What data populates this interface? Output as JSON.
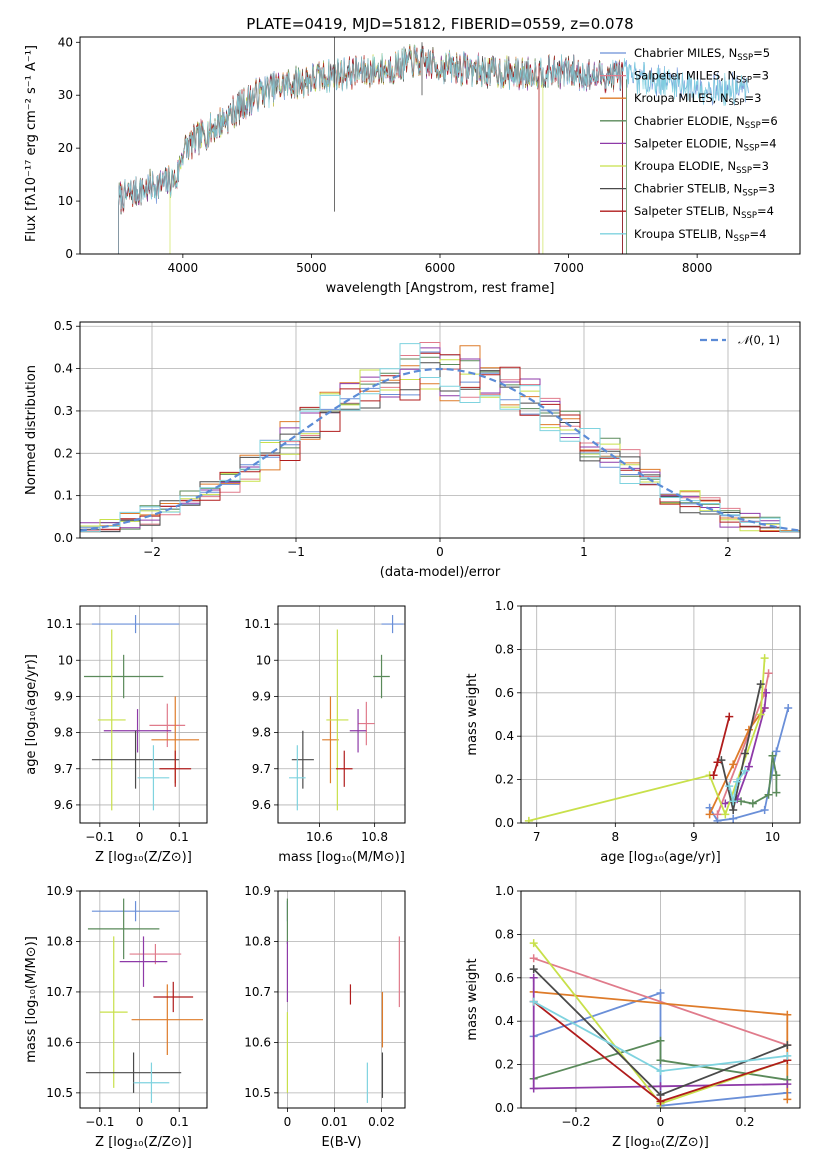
{
  "chart_data": [
    {
      "id": "spectrum",
      "type": "line",
      "title": "PLATE=0419, MJD=51812, FIBERID=0559, z=0.078",
      "xlabel": "wavelength [Angstrom, rest frame]",
      "ylabel": "Flux [fλ10⁻¹⁷ erg cm⁻² s⁻¹ A⁻¹]",
      "xlim": [
        3200,
        8800
      ],
      "ylim": [
        0,
        41
      ],
      "xticks": [
        4000,
        5000,
        6000,
        7000,
        8000
      ],
      "yticks": [
        0,
        10,
        20,
        30,
        40
      ],
      "grid": false,
      "legend_position": "top-right",
      "continuum_points": [
        [
          3500,
          10.5
        ],
        [
          3650,
          12
        ],
        [
          3800,
          13
        ],
        [
          3950,
          14
        ],
        [
          4000,
          19.5
        ],
        [
          4100,
          21.5
        ],
        [
          4250,
          24
        ],
        [
          4400,
          27
        ],
        [
          4600,
          30.5
        ],
        [
          4800,
          32
        ],
        [
          5000,
          33
        ],
        [
          5200,
          34
        ],
        [
          5400,
          34.5
        ],
        [
          5600,
          35
        ],
        [
          5800,
          36.5
        ],
        [
          6000,
          35.5
        ],
        [
          6200,
          35
        ],
        [
          6400,
          34.5
        ],
        [
          6600,
          34
        ],
        [
          6800,
          34.5
        ],
        [
          7000,
          34.5
        ],
        [
          7200,
          33.5
        ],
        [
          7400,
          34
        ],
        [
          7600,
          33
        ],
        [
          7800,
          32.5
        ],
        [
          8000,
          31.5
        ],
        [
          8200,
          31
        ],
        [
          8400,
          31
        ]
      ],
      "series": [
        {
          "name": "Chabrier MILES, N_SSP=5",
          "legend_main": "Chabrier MILES, N",
          "legend_sub": "SSP",
          "legend_tail": "=5",
          "color": "#6a8fd8",
          "span": [
            3500,
            8400
          ]
        },
        {
          "name": "Salpeter MILES, N_SSP=3",
          "legend_main": "Salpeter MILES, N",
          "legend_sub": "SSP",
          "legend_tail": "=3",
          "color": "#e07b8b",
          "span": [
            3500,
            7420
          ]
        },
        {
          "name": "Kroupa MILES, N_SSP=3",
          "legend_main": "Kroupa MILES, N",
          "legend_sub": "SSP",
          "legend_tail": "=3",
          "color": "#de7b2a",
          "span": [
            3500,
            7420
          ]
        },
        {
          "name": "Chabrier ELODIE, N_SSP=6",
          "legend_main": "Chabrier ELODIE, N",
          "legend_sub": "SSP",
          "legend_tail": "=6",
          "color": "#5a8a5a",
          "span": [
            3500,
            7420
          ]
        },
        {
          "name": "Salpeter ELODIE, N_SSP=4",
          "legend_main": "Salpeter ELODIE, N",
          "legend_sub": "SSP",
          "legend_tail": "=4",
          "color": "#8e3aa8",
          "span": [
            3500,
            7420
          ]
        },
        {
          "name": "Kroupa ELODIE, N_SSP=3",
          "legend_main": "Kroupa ELODIE, N",
          "legend_sub": "SSP",
          "legend_tail": "=3",
          "color": "#c8e04a",
          "span": [
            3900,
            6800
          ]
        },
        {
          "name": "Chabrier STELIB, N_SSP=3",
          "legend_main": "Chabrier STELIB, N",
          "legend_sub": "SSP",
          "legend_tail": "=3",
          "color": "#4a4a4a",
          "span": [
            3500,
            7420
          ]
        },
        {
          "name": "Salpeter STELIB, N_SSP=4",
          "legend_main": "Salpeter STELIB, N",
          "legend_sub": "SSP",
          "legend_tail": "=4",
          "color": "#b01c1c",
          "span": [
            3500,
            7420
          ]
        },
        {
          "name": "Kroupa STELIB, N_SSP=4",
          "legend_main": "Kroupa STELIB, N",
          "legend_sub": "SSP",
          "legend_tail": "=4",
          "color": "#7fd3df",
          "span": [
            3500,
            8400
          ]
        }
      ]
    },
    {
      "id": "residuals",
      "type": "line",
      "xlabel": "(data-model)/error",
      "ylabel": "Normed distribution",
      "xlim": [
        -2.5,
        2.5
      ],
      "ylim": [
        0,
        0.51
      ],
      "xticks": [
        -2,
        -1,
        0,
        1,
        2
      ],
      "yticks": [
        0.0,
        0.1,
        0.2,
        0.3,
        0.4,
        0.5
      ],
      "grid": true,
      "legend_position": "top-right",
      "reference_curve": {
        "name": "N(0,1)",
        "label_script": "𝒩",
        "label_tail": "(0, 1)",
        "color": "#5b8bd6",
        "style": "dashed"
      },
      "histogram_bins": 36,
      "note": "nine step histograms, one per fit, colours as in the spectrum panel"
    },
    {
      "id": "age-vs-Z",
      "type": "scatter",
      "xlabel": "Z [log₁₀(Z/Z⊙)]",
      "ylabel": "age  [log₁₀(age/yr)]",
      "xlim": [
        -0.15,
        0.17
      ],
      "ylim": [
        9.55,
        10.15
      ],
      "xticks": [
        -0.1,
        0.0,
        0.1
      ],
      "yticks": [
        9.6,
        9.7,
        9.8,
        9.9,
        10.0,
        10.1
      ],
      "grid": true,
      "points": [
        {
          "x": -0.01,
          "y": 10.1,
          "xerr": 0.11,
          "yerr": 0.025,
          "series": "Chabrier MILES"
        },
        {
          "x": 0.07,
          "y": 9.82,
          "xerr": 0.045,
          "yerr": 0.06,
          "series": "Salpeter MILES"
        },
        {
          "x": 0.09,
          "y": 9.78,
          "xerr": 0.06,
          "yerr": 0.12,
          "series": "Kroupa MILES"
        },
        {
          "x": -0.04,
          "y": 9.955,
          "xerr": 0.1,
          "yerr": 0.06,
          "series": "Chabrier ELODIE"
        },
        {
          "x": -0.005,
          "y": 9.805,
          "xerr": 0.085,
          "yerr": 0.06,
          "series": "Salpeter ELODIE"
        },
        {
          "x": -0.07,
          "y": 9.835,
          "xerr": 0.035,
          "yerr": 0.25,
          "series": "Kroupa ELODIE"
        },
        {
          "x": -0.01,
          "y": 9.725,
          "xerr": 0.11,
          "yerr": 0.08,
          "series": "Chabrier STELIB"
        },
        {
          "x": 0.09,
          "y": 9.7,
          "xerr": 0.04,
          "yerr": 0.05,
          "series": "Salpeter STELIB"
        },
        {
          "x": 0.035,
          "y": 9.675,
          "xerr": 0.04,
          "yerr": 0.09,
          "series": "Kroupa STELIB"
        }
      ]
    },
    {
      "id": "age-vs-mass",
      "type": "scatter",
      "xlabel": "mass [log₁₀(M/M⊙)]",
      "xlim": [
        10.45,
        10.91
      ],
      "ylim": [
        9.55,
        10.15
      ],
      "xticks": [
        10.6,
        10.8
      ],
      "yticks": [
        9.6,
        9.7,
        9.8,
        9.9,
        10.0,
        10.1
      ],
      "grid": true,
      "points": [
        {
          "x": 10.865,
          "y": 10.1,
          "xerr": 0.04,
          "yerr": 0.025,
          "series": "Chabrier MILES"
        },
        {
          "x": 10.77,
          "y": 9.825,
          "xerr": 0.03,
          "yerr": 0.06,
          "series": "Salpeter MILES"
        },
        {
          "x": 10.64,
          "y": 9.78,
          "xerr": 0.03,
          "yerr": 0.12,
          "series": "Kroupa MILES"
        },
        {
          "x": 10.825,
          "y": 9.955,
          "xerr": 0.03,
          "yerr": 0.06,
          "series": "Chabrier ELODIE"
        },
        {
          "x": 10.74,
          "y": 9.805,
          "xerr": 0.03,
          "yerr": 0.06,
          "series": "Salpeter ELODIE"
        },
        {
          "x": 10.665,
          "y": 9.835,
          "xerr": 0.04,
          "yerr": 0.25,
          "series": "Kroupa ELODIE"
        },
        {
          "x": 10.54,
          "y": 9.725,
          "xerr": 0.04,
          "yerr": 0.08,
          "series": "Chabrier STELIB"
        },
        {
          "x": 10.69,
          "y": 9.7,
          "xerr": 0.03,
          "yerr": 0.05,
          "series": "Salpeter STELIB"
        },
        {
          "x": 10.52,
          "y": 9.675,
          "xerr": 0.03,
          "yerr": 0.09,
          "series": "Kroupa STELIB"
        }
      ]
    },
    {
      "id": "weight-vs-age",
      "type": "line",
      "xlabel": "age  [log₁₀(age/yr)]",
      "ylabel": "mass weight",
      "xlim": [
        6.8,
        10.35
      ],
      "ylim": [
        0,
        1
      ],
      "xticks": [
        7,
        8,
        9,
        10
      ],
      "yticks": [
        0.0,
        0.2,
        0.4,
        0.6,
        0.8,
        1.0
      ],
      "grid": true,
      "series": [
        {
          "name": "Chabrier MILES",
          "x": [
            9.2,
            9.3,
            9.5,
            9.9,
            10.05,
            10.2
          ],
          "y": [
            0.07,
            0.01,
            0.02,
            0.06,
            0.33,
            0.53
          ]
        },
        {
          "name": "Salpeter MILES",
          "x": [
            9.3,
            9.9,
            9.95
          ],
          "y": [
            0.04,
            0.6,
            0.69
          ]
        },
        {
          "name": "Kroupa MILES",
          "x": [
            9.2,
            9.5,
            9.7,
            9.9
          ],
          "y": [
            0.04,
            0.27,
            0.43,
            0.53
          ]
        },
        {
          "name": "Chabrier ELODIE",
          "x": [
            9.6,
            9.75,
            9.95,
            10.0,
            10.05,
            10.05
          ],
          "y": [
            0.1,
            0.09,
            0.13,
            0.31,
            0.22,
            0.14
          ]
        },
        {
          "name": "Salpeter ELODIE",
          "x": [
            9.4,
            9.55,
            9.7,
            9.9,
            9.92
          ],
          "y": [
            0.09,
            0.11,
            0.26,
            0.53,
            0.6
          ]
        },
        {
          "name": "Kroupa ELODIE",
          "x": [
            6.9,
            9.2,
            9.4,
            9.85,
            9.9
          ],
          "y": [
            0.01,
            0.22,
            0.04,
            0.5,
            0.76
          ]
        },
        {
          "name": "Chabrier STELIB",
          "x": [
            9.35,
            9.5,
            9.65,
            9.85
          ],
          "y": [
            0.29,
            0.06,
            0.32,
            0.64
          ]
        },
        {
          "name": "Salpeter STELIB",
          "x": [
            9.25,
            9.3,
            9.45
          ],
          "y": [
            0.22,
            0.28,
            0.49
          ]
        },
        {
          "name": "Kroupa STELIB",
          "x": [
            9.45,
            9.5,
            9.55,
            9.65
          ],
          "y": [
            0.17,
            0.1,
            0.19,
            0.24
          ]
        }
      ]
    },
    {
      "id": "mass-vs-Z",
      "type": "scatter",
      "xlabel": "Z [log₁₀(Z/Z⊙)]",
      "ylabel": "mass [log₁₀(M/M⊙)]",
      "xlim": [
        -0.15,
        0.17
      ],
      "ylim": [
        10.47,
        10.9
      ],
      "xticks": [
        -0.1,
        0.0,
        0.1
      ],
      "yticks": [
        10.5,
        10.6,
        10.7,
        10.8,
        10.9
      ],
      "grid": true,
      "points": [
        {
          "x": -0.01,
          "y": 10.86,
          "xerr": 0.11,
          "yerr": 0.02,
          "series": "Chabrier MILES"
        },
        {
          "x": 0.04,
          "y": 10.775,
          "xerr": 0.065,
          "yerr": 0.02,
          "series": "Salpeter MILES"
        },
        {
          "x": 0.07,
          "y": 10.645,
          "xerr": 0.09,
          "yerr": 0.07,
          "series": "Kroupa MILES"
        },
        {
          "x": -0.04,
          "y": 10.825,
          "xerr": 0.09,
          "yerr": 0.06,
          "series": "Chabrier ELODIE"
        },
        {
          "x": 0.01,
          "y": 10.76,
          "xerr": 0.06,
          "yerr": 0.05,
          "series": "Salpeter ELODIE"
        },
        {
          "x": -0.065,
          "y": 10.66,
          "xerr": 0.035,
          "yerr": 0.15,
          "series": "Kroupa ELODIE"
        },
        {
          "x": -0.015,
          "y": 10.54,
          "xerr": 0.12,
          "yerr": 0.04,
          "series": "Chabrier STELIB"
        },
        {
          "x": 0.085,
          "y": 10.69,
          "xerr": 0.05,
          "yerr": 0.03,
          "series": "Salpeter STELIB"
        },
        {
          "x": 0.03,
          "y": 10.52,
          "xerr": 0.045,
          "yerr": 0.04,
          "series": "Kroupa STELIB"
        }
      ]
    },
    {
      "id": "mass-vs-EBV",
      "type": "scatter",
      "xlabel": "E(B-V)",
      "xlim": [
        -0.002,
        0.025
      ],
      "ylim": [
        10.47,
        10.9
      ],
      "xticks": [
        0.0,
        0.01,
        0.02
      ],
      "yticks": [
        10.5,
        10.6,
        10.7,
        10.8,
        10.9
      ],
      "grid": true,
      "points": [
        {
          "x": 0.0,
          "y": 10.86,
          "xerr": 0.0,
          "yerr": 0.02,
          "series": "Chabrier MILES"
        },
        {
          "x": 0.0238,
          "y": 10.74,
          "xerr": 0.0,
          "yerr": 0.07,
          "series": "Salpeter MILES"
        },
        {
          "x": 0.0202,
          "y": 10.645,
          "xerr": 0.0,
          "yerr": 0.055,
          "series": "Kroupa MILES"
        },
        {
          "x": 0.0,
          "y": 10.84,
          "xerr": 0.0,
          "yerr": 0.045,
          "series": "Chabrier ELODIE"
        },
        {
          "x": 0.0,
          "y": 10.74,
          "xerr": 0.0,
          "yerr": 0.06,
          "series": "Salpeter ELODIE"
        },
        {
          "x": 0.0,
          "y": 10.58,
          "xerr": 0.0,
          "yerr": 0.08,
          "series": "Kroupa ELODIE"
        },
        {
          "x": 0.0202,
          "y": 10.535,
          "xerr": 0.0,
          "yerr": 0.045,
          "series": "Chabrier STELIB"
        },
        {
          "x": 0.0134,
          "y": 10.695,
          "xerr": 0.0,
          "yerr": 0.02,
          "series": "Salpeter STELIB"
        },
        {
          "x": 0.017,
          "y": 10.52,
          "xerr": 0.0,
          "yerr": 0.04,
          "series": "Kroupa STELIB"
        }
      ]
    },
    {
      "id": "weight-vs-Z",
      "type": "line",
      "xlabel": "Z [log₁₀(Z/Z⊙)]",
      "ylabel": "mass weight",
      "xlim": [
        -0.33,
        0.33
      ],
      "ylim": [
        0,
        1
      ],
      "xticks": [
        -0.2,
        0.0,
        0.2
      ],
      "yticks": [
        0.0,
        0.2,
        0.4,
        0.6,
        0.8,
        1.0
      ],
      "grid": true,
      "series": [
        {
          "name": "Chabrier MILES",
          "x": [
            -0.3,
            0.0,
            0.0,
            0.3
          ],
          "y": [
            0.33,
            0.53,
            0.01,
            0.07
          ]
        },
        {
          "name": "Salpeter MILES",
          "x": [
            -0.3,
            0.3
          ],
          "y": [
            0.69,
            0.29
          ]
        },
        {
          "name": "Kroupa MILES",
          "x": [
            -0.3,
            0.3,
            0.3
          ],
          "y": [
            0.535,
            0.43,
            0.04
          ]
        },
        {
          "name": "Chabrier ELODIE",
          "x": [
            -0.3,
            0.0,
            0.0,
            0.3
          ],
          "y": [
            0.135,
            0.31,
            0.22,
            0.13
          ]
        },
        {
          "name": "Salpeter ELODIE",
          "x": [
            -0.3,
            -0.3,
            0.0,
            0.3
          ],
          "y": [
            0.6,
            0.09,
            0.1,
            0.11
          ]
        },
        {
          "name": "Kroupa ELODIE",
          "x": [
            -0.3,
            0.0,
            0.3
          ],
          "y": [
            0.76,
            0.02,
            0.22
          ]
        },
        {
          "name": "Chabrier STELIB",
          "x": [
            -0.3,
            0.0,
            0.3
          ],
          "y": [
            0.64,
            0.06,
            0.29
          ]
        },
        {
          "name": "Salpeter STELIB",
          "x": [
            -0.3,
            0.0,
            0.3
          ],
          "y": [
            0.49,
            0.03,
            0.22
          ]
        },
        {
          "name": "Kroupa STELIB",
          "x": [
            -0.3,
            0.0,
            0.3
          ],
          "y": [
            0.49,
            0.17,
            0.24
          ]
        }
      ]
    }
  ]
}
